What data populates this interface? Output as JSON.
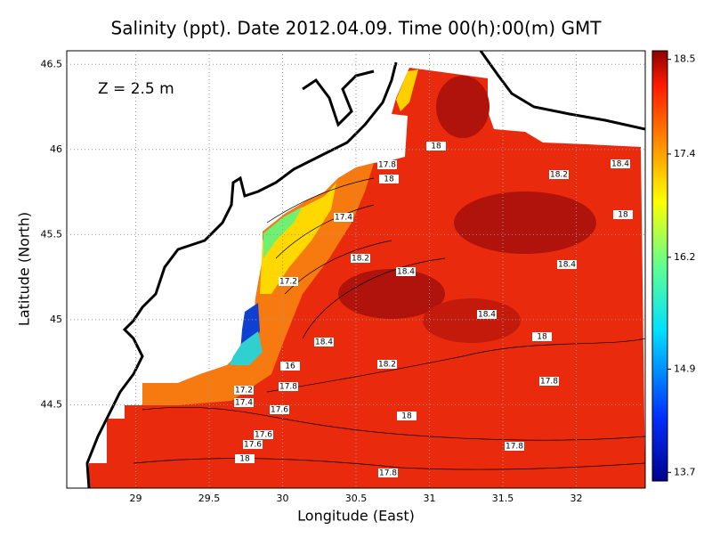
{
  "title": "Salinity (ppt). Date 2012.04.09. Time 00(h):00(m) GMT",
  "annotation": "Z = 2.5 m",
  "xlabel": "Longitude (East)",
  "ylabel": "Latitude (North)",
  "xlim": [
    28.53,
    32.47
  ],
  "ylim": [
    44.01,
    46.58
  ],
  "xticks": [
    29,
    29.5,
    30,
    30.5,
    31,
    31.5,
    32
  ],
  "yticks": [
    44.5,
    45,
    45.5,
    46,
    46.5
  ],
  "colorbar": {
    "clim": [
      13.6,
      18.6
    ],
    "ticks": [
      18.5,
      17.4,
      16.2,
      14.9,
      13.7
    ]
  },
  "contour_labels": [
    18,
    17.8,
    18,
    18.2,
    18.4,
    18,
    17.4,
    18.2,
    18.4,
    18.4,
    17.2,
    18.4,
    18,
    18.4,
    18.2,
    16,
    17.8,
    17.8,
    17.2,
    17.4,
    17.6,
    18,
    17.6,
    17.6,
    17.8,
    18,
    17.8
  ]
}
